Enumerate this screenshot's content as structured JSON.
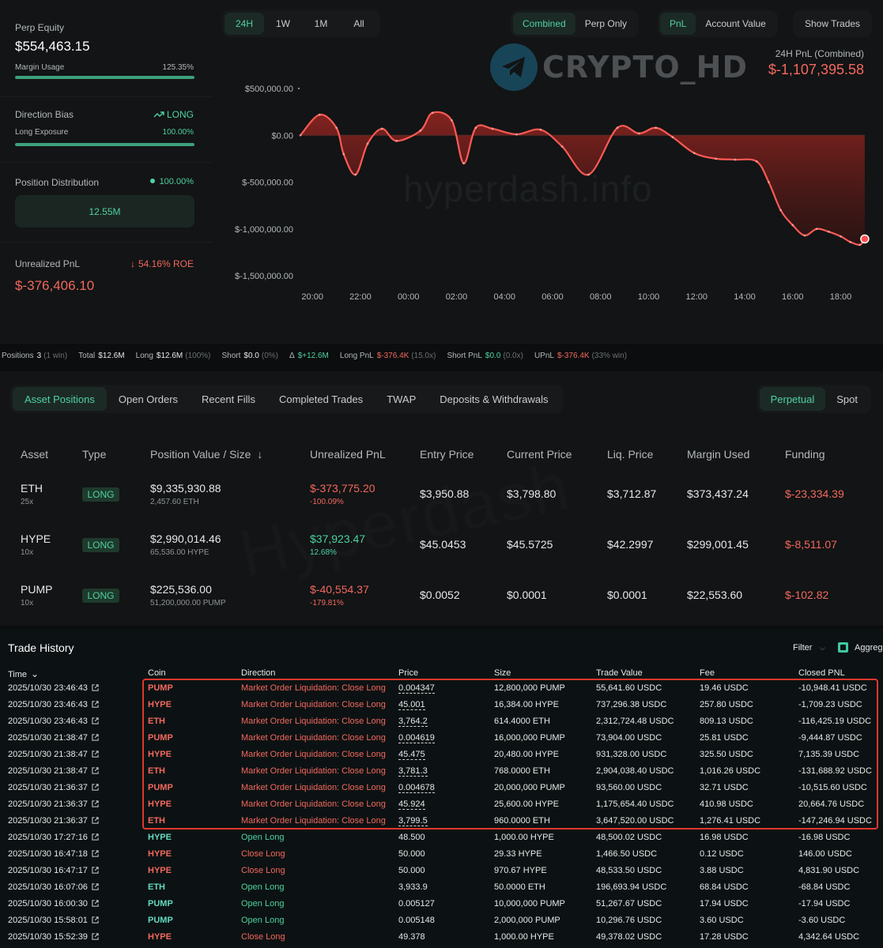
{
  "equity": {
    "perp_equity_label": "Perp Equity",
    "perp_equity_value": "$554,463.15",
    "margin_usage_label": "Margin Usage",
    "margin_usage_value": "125.35%",
    "margin_usage_fill": 1.0,
    "direction_bias_label": "Direction Bias",
    "direction_bias_value": "LONG",
    "long_exposure_label": "Long Exposure",
    "long_exposure_value": "100.00%",
    "long_exposure_fill": 1.0,
    "position_distribution_label": "Position Distribution",
    "position_distribution_pct": "100.00%",
    "position_distribution_total": "12.55M",
    "unrealized_pnl_label": "Unrealized PnL",
    "roe_value": "54.16% ROE",
    "unrealized_pnl_value": "$-376,406.10"
  },
  "timeframes": [
    "24H",
    "1W",
    "1M",
    "All"
  ],
  "timeframe_active": "24H",
  "mode_toggle": [
    "Combined",
    "Perp Only"
  ],
  "mode_active": "Combined",
  "metric_toggle": [
    "PnL",
    "Account Value"
  ],
  "metric_active": "PnL",
  "show_trades_label": "Show Trades",
  "pnl_summary": {
    "label": "24H PnL (Combined)",
    "value": "$-1,107,395.58"
  },
  "watermark": {
    "brand": "CRYPTO_HD",
    "site": "hyperdash.info",
    "site2": "Hyperdash"
  },
  "chart_data": {
    "type": "area",
    "x_ticks": [
      "20:00",
      "22:00",
      "00:00",
      "02:00",
      "04:00",
      "06:00",
      "08:00",
      "10:00",
      "12:00",
      "14:00",
      "16:00",
      "18:00"
    ],
    "y_ticks": [
      "$500,000.00",
      "$0.00",
      "$-500,000.00",
      "$-1,000,000.00",
      "$-1,500,000.00"
    ],
    "ylim": [
      -1500000,
      500000
    ],
    "xlim_hours": [
      19.5,
      43.2
    ],
    "series": [
      {
        "x_hours": [
          19.5,
          20.3,
          21.0,
          21.3,
          21.8,
          22.3,
          22.9,
          23.5,
          24.5,
          25.0,
          25.8,
          26.3,
          26.8,
          27.5,
          28.5,
          29.5,
          30.4,
          31.5,
          32.7,
          33.6,
          34.3,
          35.0,
          35.9,
          36.8,
          37.6,
          38.5,
          39.0,
          39.5,
          40.0,
          40.5,
          41.0,
          41.5,
          42.0,
          42.4,
          42.8,
          43.0
        ],
        "values": [
          0,
          220000,
          80000,
          -200000,
          -420000,
          -90000,
          70000,
          -60000,
          50000,
          240000,
          160000,
          -300000,
          80000,
          70000,
          10000,
          60000,
          -120000,
          -420000,
          80000,
          20000,
          80000,
          -20000,
          -190000,
          -250000,
          -260000,
          -280000,
          -500000,
          -800000,
          -960000,
          -1070000,
          -1000000,
          -1030000,
          -1080000,
          -1140000,
          -1170000,
          -1107395.58
        ]
      }
    ]
  },
  "stats": {
    "positions_label": "Positions",
    "positions_value": "3",
    "positions_note": "(1 win)",
    "total_label": "Total",
    "total_value": "$12.6M",
    "long_label": "Long",
    "long_value": "$12.6M",
    "long_note": "(100%)",
    "short_label": "Short",
    "short_value": "$0.0",
    "short_note": "(0%)",
    "delta_label": "Δ",
    "delta_value": "$+12.6M",
    "long_pnl_label": "Long PnL",
    "long_pnl_value": "$-376.4K",
    "long_pnl_note": "(15.0x)",
    "short_pnl_label": "Short PnL",
    "short_pnl_value": "$0.0",
    "short_pnl_note": "(0.0x)",
    "upnl_label": "UPnL",
    "upnl_value": "$-376.4K",
    "upnl_note": "(33% win)"
  },
  "position_tabs": [
    "Asset Positions",
    "Open Orders",
    "Recent Fills",
    "Completed Trades",
    "TWAP",
    "Deposits & Withdrawals"
  ],
  "position_tab_active": "Asset Positions",
  "market_toggle": [
    "Perpetual",
    "Spot"
  ],
  "market_active": "Perpetual",
  "positions_headers": [
    "Asset",
    "Type",
    "Position Value / Size",
    "Unrealized PnL",
    "Entry Price",
    "Current Price",
    "Liq. Price",
    "Margin Used",
    "Funding"
  ],
  "sort_arrow": "↓",
  "positions": [
    {
      "asset": "ETH",
      "leverage": "25x",
      "type": "LONG",
      "value": "$9,335,930.88",
      "size": "2,457.60 ETH",
      "upnl": "$-373,775.20",
      "upnl_pct": "-100.09%",
      "upnl_sign": "neg",
      "entry": "$3,950.88",
      "current": "$3,798.80",
      "liq": "$3,712.87",
      "margin": "$373,437.24",
      "funding": "$-23,334.39"
    },
    {
      "asset": "HYPE",
      "leverage": "10x",
      "type": "LONG",
      "value": "$2,990,014.46",
      "size": "65,536.00 HYPE",
      "upnl": "$37,923.47",
      "upnl_pct": "12.68%",
      "upnl_sign": "pos",
      "entry": "$45.0453",
      "current": "$45.5725",
      "liq": "$42.2997",
      "margin": "$299,001.45",
      "funding": "$-8,511.07"
    },
    {
      "asset": "PUMP",
      "leverage": "10x",
      "type": "LONG",
      "value": "$225,536.00",
      "size": "51,200,000.00 PUMP",
      "upnl": "$-40,554.37",
      "upnl_pct": "-179.81%",
      "upnl_sign": "neg",
      "entry": "$0.0052",
      "current": "$0.0001",
      "liq": "$0.0001",
      "margin": "$22,553.60",
      "funding": "$-102.82"
    }
  ],
  "history": {
    "title": "Trade History",
    "filter_label": "Filter",
    "aggregate_label": "Aggreg",
    "headers": [
      "Time",
      "Coin",
      "Direction",
      "Price",
      "Size",
      "Trade Value",
      "Fee",
      "Closed PNL"
    ],
    "rows": [
      {
        "time": "2025/10/30 23:46:43",
        "coin": "PUMP",
        "dir": "Market Order Liquidation: Close Long",
        "price": "0.004347",
        "size": "12,800,000 PUMP",
        "value": "55,641.60 USDC",
        "fee": "19.46 USDC",
        "pnl": "-10,948.41 USDC",
        "liq": true
      },
      {
        "time": "2025/10/30 23:46:43",
        "coin": "HYPE",
        "dir": "Market Order Liquidation: Close Long",
        "price": "45.001",
        "size": "16,384.00 HYPE",
        "value": "737,296.38 USDC",
        "fee": "257.80 USDC",
        "pnl": "-1,709.23 USDC",
        "liq": true
      },
      {
        "time": "2025/10/30 23:46:43",
        "coin": "ETH",
        "dir": "Market Order Liquidation: Close Long",
        "price": "3,764.2",
        "size": "614.4000 ETH",
        "value": "2,312,724.48 USDC",
        "fee": "809.13 USDC",
        "pnl": "-116,425.19 USDC",
        "liq": true
      },
      {
        "time": "2025/10/30 21:38:47",
        "coin": "PUMP",
        "dir": "Market Order Liquidation: Close Long",
        "price": "0.004619",
        "size": "16,000,000 PUMP",
        "value": "73,904.00 USDC",
        "fee": "25.81 USDC",
        "pnl": "-9,444.87 USDC",
        "liq": true
      },
      {
        "time": "2025/10/30 21:38:47",
        "coin": "HYPE",
        "dir": "Market Order Liquidation: Close Long",
        "price": "45.475",
        "size": "20,480.00 HYPE",
        "value": "931,328.00 USDC",
        "fee": "325.50 USDC",
        "pnl": "7,135.39 USDC",
        "liq": true
      },
      {
        "time": "2025/10/30 21:38:47",
        "coin": "ETH",
        "dir": "Market Order Liquidation: Close Long",
        "price": "3,781.3",
        "size": "768.0000 ETH",
        "value": "2,904,038.40 USDC",
        "fee": "1,016.26 USDC",
        "pnl": "-131,688.92 USDC",
        "liq": true
      },
      {
        "time": "2025/10/30 21:36:37",
        "coin": "PUMP",
        "dir": "Market Order Liquidation: Close Long",
        "price": "0.004678",
        "size": "20,000,000 PUMP",
        "value": "93,560.00 USDC",
        "fee": "32.71 USDC",
        "pnl": "-10,515.60 USDC",
        "liq": true
      },
      {
        "time": "2025/10/30 21:36:37",
        "coin": "HYPE",
        "dir": "Market Order Liquidation: Close Long",
        "price": "45.924",
        "size": "25,600.00 HYPE",
        "value": "1,175,654.40 USDC",
        "fee": "410.98 USDC",
        "pnl": "20,664.76 USDC",
        "liq": true
      },
      {
        "time": "2025/10/30 21:36:37",
        "coin": "ETH",
        "dir": "Market Order Liquidation: Close Long",
        "price": "3,799.5",
        "size": "960.0000 ETH",
        "value": "3,647,520.00 USDC",
        "fee": "1,276.41 USDC",
        "pnl": "-147,246.94 USDC",
        "liq": true
      },
      {
        "time": "2025/10/30 17:27:16",
        "coin": "HYPE",
        "dir": "Open Long",
        "price": "48.500",
        "size": "1,000.00 HYPE",
        "value": "48,500.02 USDC",
        "fee": "16.98 USDC",
        "pnl": "-16.98 USDC",
        "liq": false
      },
      {
        "time": "2025/10/30 16:47:18",
        "coin": "HYPE",
        "dir": "Close Long",
        "price": "50.000",
        "size": "29.33 HYPE",
        "value": "1,466.50 USDC",
        "fee": "0.12 USDC",
        "pnl": "146.00 USDC",
        "liq": false
      },
      {
        "time": "2025/10/30 16:47:17",
        "coin": "HYPE",
        "dir": "Close Long",
        "price": "50.000",
        "size": "970.67 HYPE",
        "value": "48,533.50 USDC",
        "fee": "3.88 USDC",
        "pnl": "4,831.90 USDC",
        "liq": false
      },
      {
        "time": "2025/10/30 16:07:06",
        "coin": "ETH",
        "dir": "Open Long",
        "price": "3,933.9",
        "size": "50.0000 ETH",
        "value": "196,693.94 USDC",
        "fee": "68.84 USDC",
        "pnl": "-68.84 USDC",
        "liq": false
      },
      {
        "time": "2025/10/30 16:00:30",
        "coin": "PUMP",
        "dir": "Open Long",
        "price": "0.005127",
        "size": "10,000,000 PUMP",
        "value": "51,267.67 USDC",
        "fee": "17.94 USDC",
        "pnl": "-17.94 USDC",
        "liq": false
      },
      {
        "time": "2025/10/30 15:58:01",
        "coin": "PUMP",
        "dir": "Open Long",
        "price": "0.005148",
        "size": "2,000,000 PUMP",
        "value": "10,296.76 USDC",
        "fee": "3.60 USDC",
        "pnl": "-3.60 USDC",
        "liq": false
      },
      {
        "time": "2025/10/30 15:52:39",
        "coin": "HYPE",
        "dir": "Close Long",
        "price": "49.378",
        "size": "1,000.00 HYPE",
        "value": "49,378.02 USDC",
        "fee": "17.28 USDC",
        "pnl": "4,342.64 USDC",
        "liq": false
      }
    ]
  },
  "colors": {
    "accent": "#4fd1a1",
    "negative": "#f2685e",
    "line": "#ff5a55",
    "highlight": "#e0372e"
  }
}
